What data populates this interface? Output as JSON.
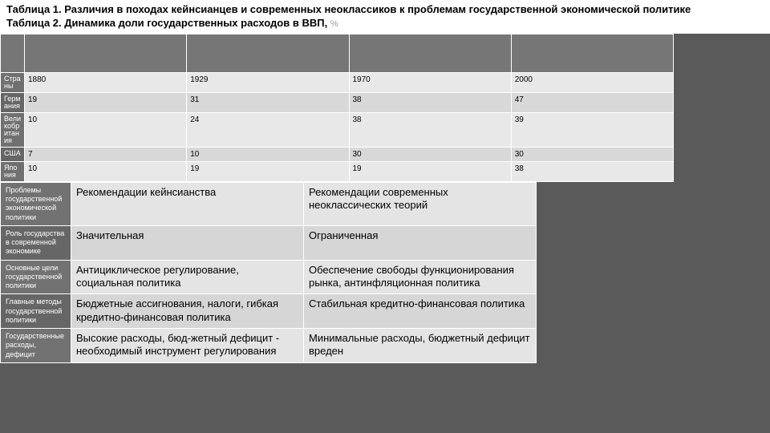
{
  "titles": {
    "line1": "Таблица 1. Различия в походах кейнсианцев и современных неоклассиков к проблемам государственной экономической политике",
    "line2_main": "Таблица 2. Динамика доли государственных расходов в ВВП,",
    "line2_suffix": "%"
  },
  "table2": {
    "header_blank_cols": 5,
    "rows": [
      {
        "head": "Страны",
        "cells": [
          "1880",
          "1929",
          "1970",
          "2000"
        ]
      },
      {
        "head": "Германия",
        "cells": [
          "19",
          "31",
          "38",
          "47"
        ]
      },
      {
        "head": "Великобритания",
        "cells": [
          "10",
          "24",
          "38",
          "39"
        ]
      },
      {
        "head": "США",
        "cells": [
          "7",
          "10",
          "30",
          "30"
        ]
      },
      {
        "head": "Япония",
        "cells": [
          "10",
          "19",
          "19",
          "38"
        ]
      }
    ],
    "col_widths": [
      "30px",
      "160px",
      "160px",
      "160px",
      "330px"
    ],
    "row_heading_color": "#767676",
    "row_heading_text_color": "#ffffff",
    "data_bg_light": "#e8e8e8",
    "data_bg_dark": "#d8d8d8"
  },
  "table1": {
    "rows": [
      {
        "head": "Проблемы государственной экономической политики",
        "c1": "Рекомендации кейнсианства",
        "c2": "Рекомендации современных неоклассических теорий"
      },
      {
        "head": "Роль государства в современной экономике",
        "c1": "Значительная",
        "c2": "Ограниченная"
      },
      {
        "head": "Основные цели государственной политики",
        "c1": "Антициклическое регулирование, социальная политика",
        "c2": "Обеспечение свободы функционирования рынка, антинфляционная политика"
      },
      {
        "head": "Главные методы государственной политики",
        "c1": "Бюджетные ассигнования, налоги, гибкая кредитно-финансовая политика",
        "c2": "Стабильная кредитно-финансовая политика"
      },
      {
        "head": "Государственные расходы, дефицит",
        "c1": "Высокие расходы, бюд-жетный дефицит - необходимый инструмент регулирования",
        "c2": "Минимальные расходы, бюджетный дефицит вреден"
      }
    ],
    "row_heading_color": "#767676",
    "row_heading_text_color": "#ffffff"
  },
  "style": {
    "page_bg": "#5a5a5a",
    "font_family": "Arial, sans-serif",
    "title_font_size": 13,
    "table2_font_size": 10,
    "table1_font_size": 13
  }
}
